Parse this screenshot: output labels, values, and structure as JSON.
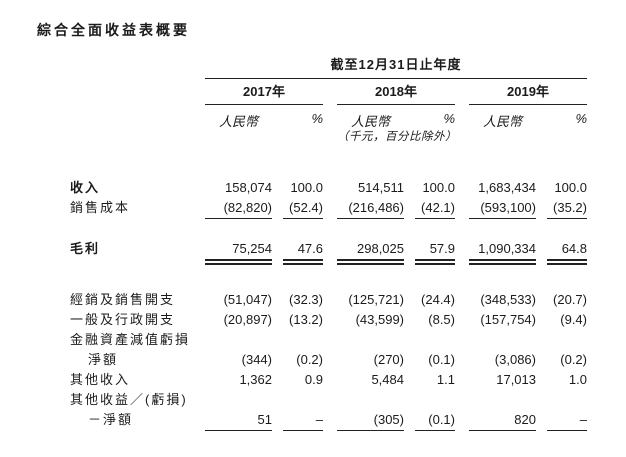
{
  "page_title": "綜合全面收益表概要",
  "table": {
    "period_header": "截至12月31日止年度",
    "year_groups": [
      {
        "year": "2017年"
      },
      {
        "year": "2018年"
      },
      {
        "year": "2019年"
      }
    ],
    "currency_label": "人民幣",
    "percent_label": "%",
    "unit_note": "（千元，百分比除外）",
    "rows": [
      {
        "label": "收入",
        "values": [
          "158,074",
          "100.0",
          "514,511",
          "100.0",
          "1,683,434",
          "100.0"
        ]
      },
      {
        "label": "銷售成本",
        "values": [
          "(82,820)",
          "(52.4)",
          "(216,486)",
          "(42.1)",
          "(593,100)",
          "(35.2)"
        ]
      },
      {
        "label": "毛利",
        "values": [
          "75,254",
          "47.6",
          "298,025",
          "57.9",
          "1,090,334",
          "64.8"
        ]
      },
      {
        "label": "經銷及銷售開支",
        "values": [
          "(51,047)",
          "(32.3)",
          "(125,721)",
          "(24.4)",
          "(348,533)",
          "(20.7)"
        ]
      },
      {
        "label": "一般及行政開支",
        "values": [
          "(20,897)",
          "(13.2)",
          "(43,599)",
          "(8.5)",
          "(157,754)",
          "(9.4)"
        ]
      },
      {
        "label": "金融資產減值虧損",
        "values": [
          "",
          "",
          "",
          "",
          "",
          ""
        ]
      },
      {
        "label": "淨額",
        "values": [
          "(344)",
          "(0.2)",
          "(270)",
          "(0.1)",
          "(3,086)",
          "(0.2)"
        ]
      },
      {
        "label": "其他收入",
        "values": [
          "1,362",
          "0.9",
          "5,484",
          "1.1",
          "17,013",
          "1.0"
        ]
      },
      {
        "label": "其他收益／(虧損)",
        "values": [
          "",
          "",
          "",
          "",
          "",
          ""
        ]
      },
      {
        "label": "－淨額",
        "values": [
          "51",
          "–",
          "(305)",
          "(0.1)",
          "820",
          "–"
        ]
      }
    ]
  }
}
